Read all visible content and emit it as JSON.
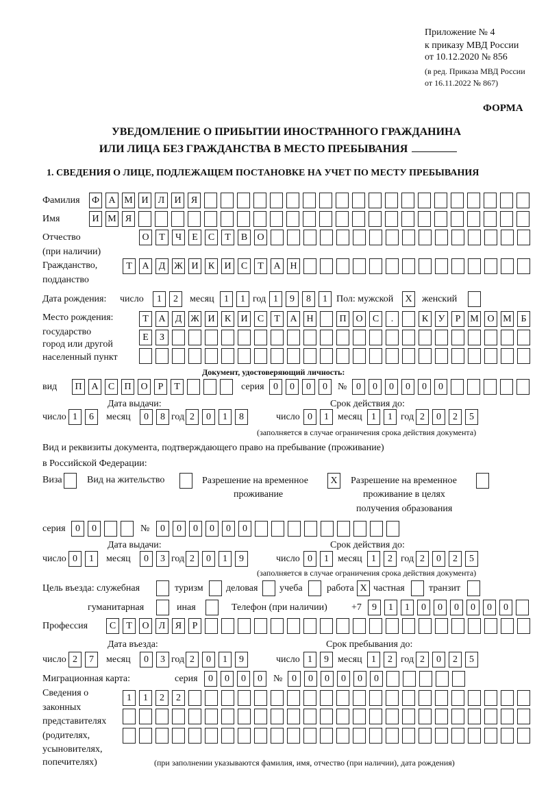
{
  "header": {
    "appendix": "Приложение № 4",
    "order": "к приказу МВД России",
    "order_date": "от 10.12.2020 № 856",
    "edition": "(в ред. Приказа МВД России",
    "edition_date": "от 16.11.2022 № 867)",
    "form": "ФОРМА"
  },
  "title": {
    "line1": "УВЕДОМЛЕНИЕ О ПРИБЫТИИ ИНОСТРАННОГО ГРАЖДАНИНА",
    "line2": "ИЛИ ЛИЦА БЕЗ ГРАЖДАНСТВА В МЕСТО ПРЕБЫВАНИЯ"
  },
  "section1": {
    "heading": "1. СВЕДЕНИЯ О ЛИЦЕ, ПОДЛЕЖАЩЕМ ПОСТАНОВКЕ НА УЧЕТ ПО МЕСТУ ПРЕБЫВАНИЯ"
  },
  "person": {
    "surname_label": "Фамилия",
    "surname": "ФАМИЛИЯ",
    "name_label": "Имя",
    "name": "ИМЯ",
    "patronymic_label": "Отчество",
    "patronymic_label2": "(при наличии)",
    "patronymic": "ОТЧЕСТВО",
    "citizenship_label": "Гражданство,",
    "citizenship_label2": "подданство",
    "citizenship": "ТАДЖИКИСТАН",
    "birth_label": "Дата рождения:",
    "day_label": "число",
    "birth_day": "12",
    "month_label": "месяц",
    "birth_month": "11",
    "year_label": "год",
    "birth_year": "1981",
    "sex_label": "Пол: мужской",
    "male": "X",
    "female_label": "женский",
    "female": "",
    "birthplace_label": "Место рождения:",
    "birthplace_label2": "государство",
    "birthplace_label3": "город или другой",
    "birthplace_label4": "населенный пункт",
    "birthplace_line1": "ТАДЖИКИСТАН ПОС. КУРМОМБ",
    "birthplace_line2": "ЕЗ",
    "birthplace_line3": ""
  },
  "id_doc": {
    "heading": "Документ, удостоверяющий личность:",
    "kind_label": "вид",
    "kind": "ПАСПОРТ",
    "series_label": "серия",
    "series": "0000",
    "number_label": "№",
    "number": "000000",
    "issued_label": "Дата выдачи:",
    "valid_label": "Срок действия до:",
    "issued_day": "16",
    "issued_month": "08",
    "issued_year": "2018",
    "valid_day": "01",
    "valid_month": "11",
    "valid_year": "2025",
    "note": "(заполняется в случае ограничения срока действия документа)"
  },
  "stay_doc": {
    "intro1": "Вид и реквизиты документа, подтверждающего право на пребывание (проживание)",
    "intro2": "в Российской Федерации:",
    "visa_label": "Виза",
    "visa": "",
    "residence_label": "Вид на жительство",
    "residence": "",
    "trp_label1": "Разрешение на временное",
    "trp_label2": "проживание",
    "trp": "X",
    "trp_edu_label1": "Разрешение на временное",
    "trp_edu_label2": "проживание в целях",
    "trp_edu_label3": "получения образования",
    "trp_edu": "",
    "series_label": "серия",
    "series": "00",
    "number_label": "№",
    "number": "000000",
    "issued_label": "Дата выдачи:",
    "valid_label": "Срок действия до:",
    "issued_day": "01",
    "issued_month": "03",
    "issued_year": "2019",
    "valid_day": "01",
    "valid_month": "12",
    "valid_year": "2025",
    "note": "(заполняется в случае ограничения срока действия документа)"
  },
  "purpose": {
    "label": "Цель въезда: служебная",
    "official": "",
    "tourism_label": "туризм",
    "tourism": "",
    "business_label": "деловая",
    "business": "",
    "study_label": "учеба",
    "study": "",
    "work_label": "работа",
    "work": "X",
    "private_label": "частная",
    "private": "",
    "transit_label": "транзит",
    "transit": "",
    "humanitarian_label": "гуманитарная",
    "humanitarian": "",
    "other_label": "иная",
    "other": ""
  },
  "phone": {
    "label": "Телефон (при наличии)",
    "prefix": "+7",
    "value": "911000000"
  },
  "profession": {
    "label": "Профессия",
    "value": "СТОЛЯР"
  },
  "entry": {
    "entry_label": "Дата въезда:",
    "stay_label": "Срок пребывания до:",
    "entry_day": "27",
    "entry_month": "03",
    "entry_year": "2019",
    "stay_day": "19",
    "stay_month": "12",
    "stay_year": "2025"
  },
  "migration_card": {
    "label": "Миграционная карта:",
    "series_label": "серия",
    "series": "0000",
    "number_label": "№",
    "number": "000000"
  },
  "representatives": {
    "label1": "Сведения о",
    "label2": "законных",
    "label3": "представителях",
    "label4": "(родителях,",
    "label5": "усыновителях,",
    "label6": "попечителях)",
    "line1": "1122",
    "line2": "",
    "line3": "",
    "note": "(при заполнении указываются фамилия, имя, отчество (при наличии), дата рождения)"
  },
  "labels": {
    "day": "число",
    "month": "месяц",
    "year": "год"
  }
}
